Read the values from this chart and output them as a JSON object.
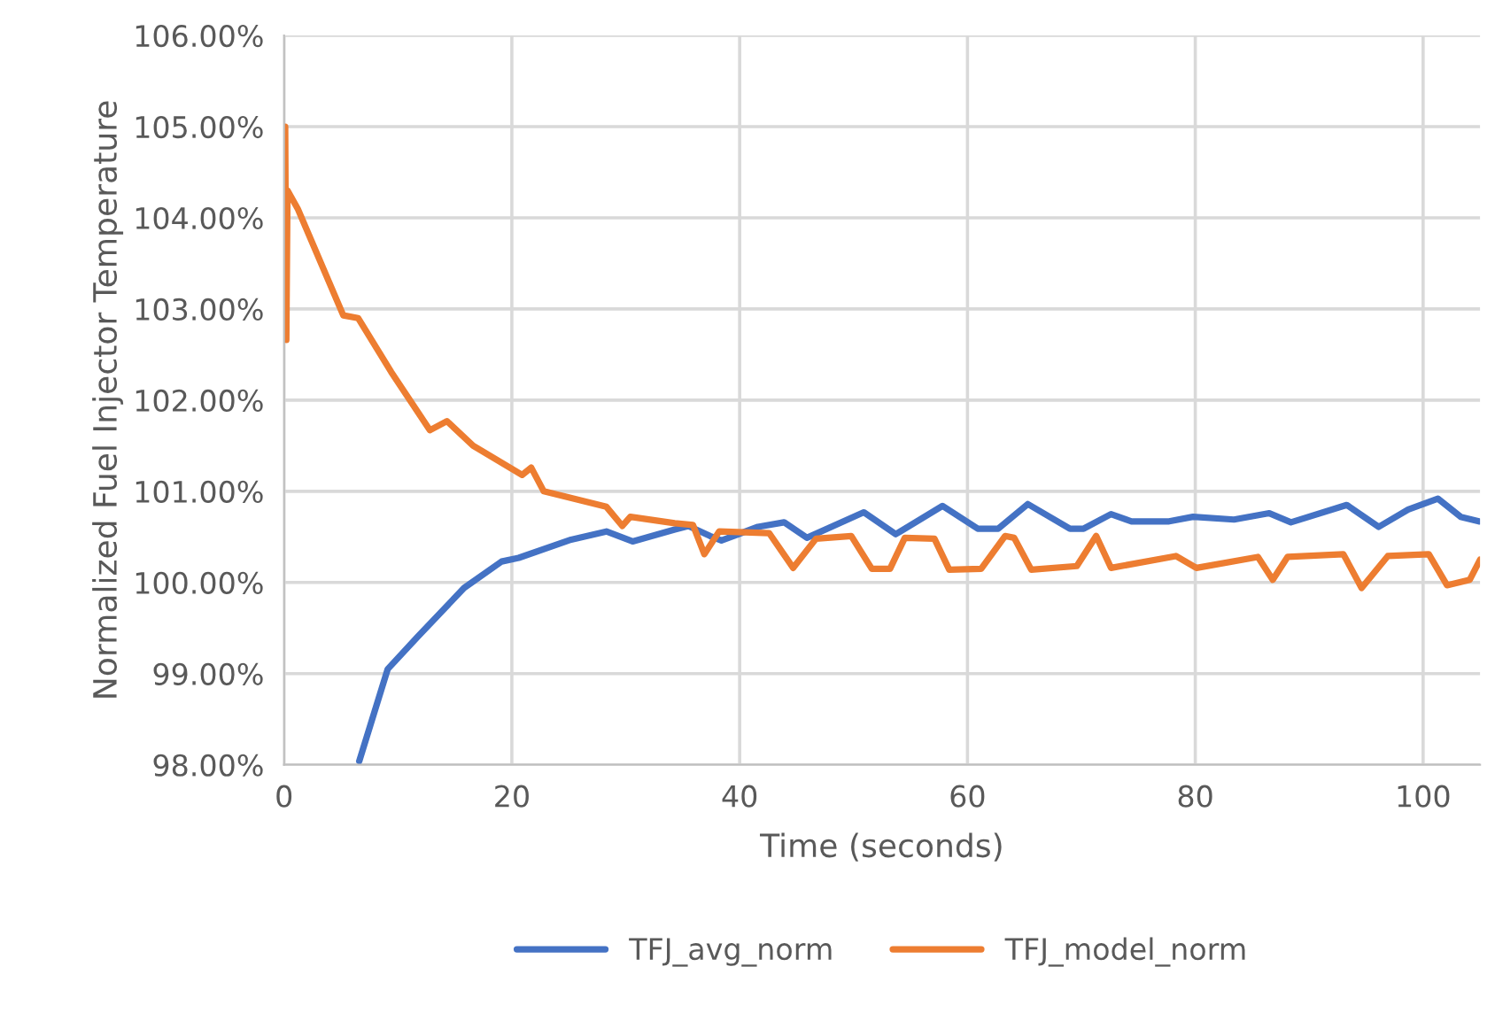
{
  "chart_data": {
    "type": "line",
    "xlabel": "Time (seconds)",
    "ylabel": "Normalized Fuel Injector Temperature",
    "xlim": [
      0,
      105
    ],
    "xticks": [
      0,
      20,
      40,
      60,
      80,
      100
    ],
    "ylim": [
      98,
      106
    ],
    "yticks": [
      {
        "value": 98,
        "label": "98.00%"
      },
      {
        "value": 99,
        "label": "99.00%"
      },
      {
        "value": 100,
        "label": "100.00%"
      },
      {
        "value": 101,
        "label": "101.00%"
      },
      {
        "value": 102,
        "label": "102.00%"
      },
      {
        "value": 103,
        "label": "103.00%"
      },
      {
        "value": 104,
        "label": "104.00%"
      },
      {
        "value": 105,
        "label": "105.00%"
      },
      {
        "value": 106,
        "label": "106.00%"
      }
    ],
    "grid": true,
    "legend": "bottom",
    "marker": "none",
    "line_style": "solid",
    "series": [
      {
        "name": "TFJ_avg_norm",
        "color": "#4472c4",
        "x": [
          6.6,
          9.1,
          11.7,
          15.8,
          19.1,
          20.6,
          25.2,
          28.3,
          30.6,
          34.3,
          35.5,
          37.4,
          38.4,
          41.6,
          43.9,
          45.9,
          50.9,
          53.7,
          57.8,
          60.9,
          62.7,
          65.3,
          69.0,
          70.2,
          72.6,
          74.4,
          77.7,
          79.8,
          83.4,
          86.5,
          88.4,
          93.3,
          96.1,
          98.7,
          101.3,
          103.3,
          104.9
        ],
        "values": [
          98.04,
          99.05,
          99.4,
          99.94,
          100.23,
          100.27,
          100.47,
          100.56,
          100.45,
          100.58,
          100.62,
          100.51,
          100.46,
          100.61,
          100.66,
          100.49,
          100.77,
          100.53,
          100.84,
          100.59,
          100.59,
          100.86,
          100.59,
          100.59,
          100.75,
          100.67,
          100.67,
          100.72,
          100.69,
          100.76,
          100.66,
          100.85,
          100.61,
          100.8,
          100.92,
          100.72,
          100.67
        ]
      },
      {
        "name": "TFJ_model_norm",
        "color": "#ed7d31",
        "x": [
          0,
          0.1,
          0.2,
          0.3,
          1.2,
          5.2,
          6.5,
          9.4,
          12.8,
          14.3,
          16.6,
          20.9,
          21.7,
          22.8,
          28.3,
          29.7,
          30.4,
          34.3,
          35.9,
          36.9,
          38.2,
          42.6,
          44.7,
          46.7,
          49.8,
          51.6,
          53.2,
          54.5,
          57.1,
          58.4,
          61.2,
          63.3,
          64.1,
          65.6,
          69.6,
          71.3,
          72.6,
          78.3,
          80.1,
          85.5,
          86.8,
          88.1,
          93.0,
          94.6,
          96.9,
          100.5,
          102.1,
          104.1,
          105.0
        ],
        "values": [
          104.25,
          105.0,
          102.66,
          104.3,
          104.1,
          102.93,
          102.9,
          102.31,
          101.67,
          101.77,
          101.5,
          101.18,
          101.26,
          101.0,
          100.83,
          100.62,
          100.72,
          100.65,
          100.63,
          100.31,
          100.56,
          100.54,
          100.16,
          100.48,
          100.51,
          100.15,
          100.15,
          100.49,
          100.48,
          100.14,
          100.15,
          100.51,
          100.49,
          100.14,
          100.18,
          100.51,
          100.16,
          100.29,
          100.16,
          100.28,
          100.03,
          100.28,
          100.31,
          99.94,
          100.29,
          100.31,
          99.97,
          100.03,
          100.25
        ]
      }
    ]
  }
}
